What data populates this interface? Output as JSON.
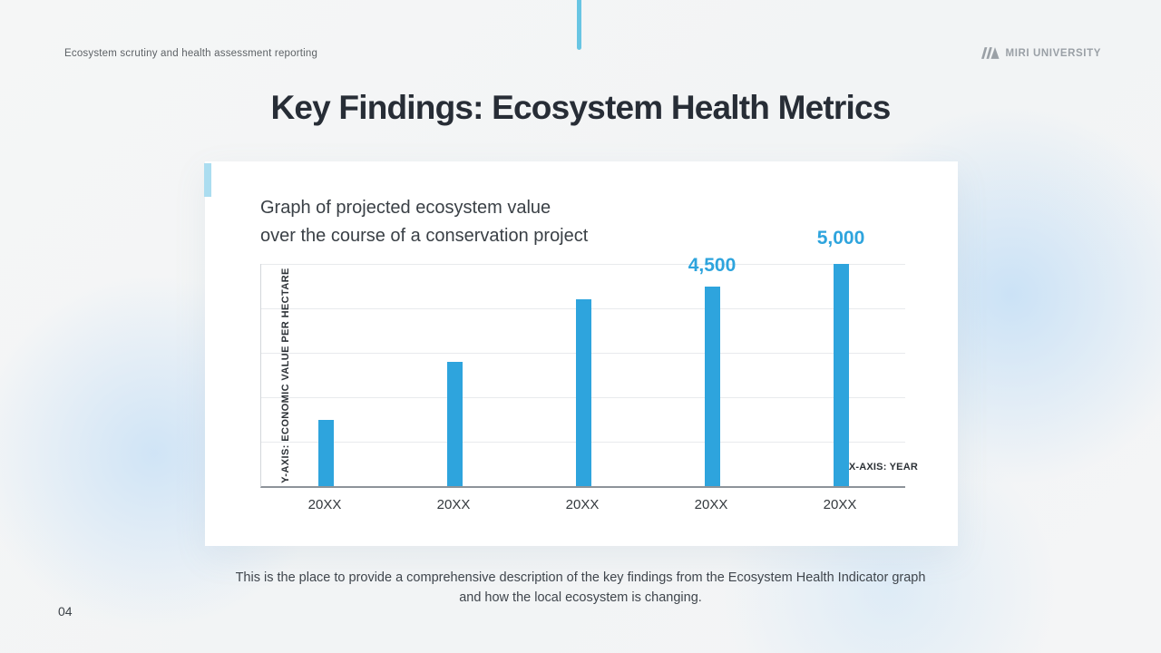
{
  "header": {
    "subtitle": "Ecosystem scrutiny and health assessment reporting",
    "brand": "MIRI UNIVERSITY"
  },
  "title": "Key Findings: Ecosystem Health Metrics",
  "page_number": "04",
  "description": {
    "line1": "This is the place to provide a comprehensive description of the key findings from the Ecosystem Health Indicator graph",
    "line2": "and how the local ecosystem is changing."
  },
  "chart_data": {
    "type": "bar",
    "title_line1": "Graph of projected ecosystem value",
    "title_line2": "over the course of a conservation project",
    "categories": [
      "20XX",
      "20XX",
      "20XX",
      "20XX",
      "20XX"
    ],
    "values": [
      1500,
      2800,
      4200,
      4500,
      5000
    ],
    "bar_labels": [
      "",
      "",
      "",
      "4,500",
      "5,000"
    ],
    "xlabel": "X-AXIS: YEAR",
    "ylabel": "Y-AXIS: ECONOMIC VALUE PER HECTARE",
    "ylim": [
      0,
      5000
    ],
    "gridline_step": 1000,
    "grid": true,
    "legend": false
  },
  "colors": {
    "bar": "#2EA4DD",
    "bar_label": "#2EA4DD",
    "accent_line": "#68C5E3",
    "accent_notch": "#ABDDF0",
    "brand_gray": "#9AA0A6"
  }
}
